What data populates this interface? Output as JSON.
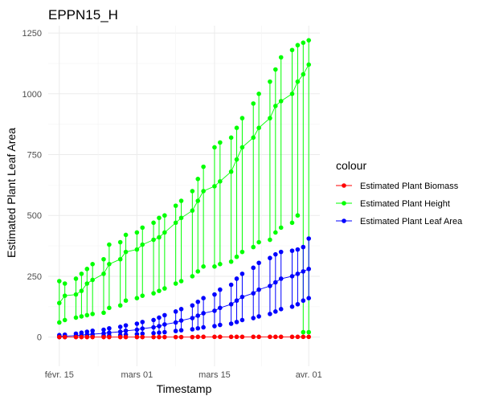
{
  "chart_data": {
    "type": "line",
    "title": "EPPN15_H",
    "xlabel": "Timestamp",
    "ylabel": "Estimated Plant Leaf Area",
    "x_ticks": [
      "févr. 15",
      "mars 01",
      "mars 15",
      "avr. 01"
    ],
    "x_tick_dates": [
      "2015-02-15",
      "2015-03-01",
      "2015-03-15",
      "2015-04-01"
    ],
    "xlim": [
      "2015-02-13",
      "2015-04-03"
    ],
    "y_ticks": [
      0,
      250,
      500,
      750,
      1000,
      1250
    ],
    "ylim": [
      -120,
      1280
    ],
    "grid": true,
    "legend": {
      "title": "colour",
      "position": "right",
      "entries": [
        "Estimated Plant Biomass",
        "Estimated Plant Height",
        "Estimated Plant Leaf Area"
      ]
    },
    "colors": {
      "Estimated Plant Biomass": "#ff0000",
      "Estimated Plant Height": "#00ff00",
      "Estimated Plant Leaf Area": "#0000ff"
    },
    "series": [
      {
        "name": "Estimated Plant Height",
        "color": "#00ff00",
        "x": [
          "2015-02-15",
          "2015-02-16",
          "2015-02-18",
          "2015-02-19",
          "2015-02-20",
          "2015-02-21",
          "2015-02-23",
          "2015-02-24",
          "2015-02-26",
          "2015-02-27",
          "2015-03-01",
          "2015-03-02",
          "2015-03-04",
          "2015-03-05",
          "2015-03-06",
          "2015-03-08",
          "2015-03-09",
          "2015-03-11",
          "2015-03-12",
          "2015-03-13",
          "2015-03-15",
          "2015-03-16",
          "2015-03-18",
          "2015-03-19",
          "2015-03-20",
          "2015-03-22",
          "2015-03-23",
          "2015-03-25",
          "2015-03-26",
          "2015-03-27",
          "2015-03-29",
          "2015-03-30",
          "2015-03-31",
          "2015-04-01"
        ],
        "y": [
          140,
          170,
          175,
          190,
          220,
          235,
          260,
          300,
          320,
          350,
          360,
          380,
          400,
          410,
          430,
          470,
          490,
          520,
          560,
          600,
          620,
          640,
          680,
          730,
          780,
          820,
          860,
          900,
          950,
          970,
          1000,
          1050,
          1080,
          1120
        ],
        "y_min": [
          60,
          70,
          80,
          85,
          90,
          95,
          100,
          120,
          130,
          150,
          160,
          170,
          180,
          190,
          200,
          220,
          230,
          250,
          270,
          290,
          290,
          300,
          310,
          330,
          350,
          370,
          390,
          400,
          430,
          450,
          470,
          500,
          20,
          20
        ],
        "y_max": [
          230,
          220,
          240,
          260,
          280,
          300,
          320,
          380,
          390,
          420,
          430,
          450,
          470,
          490,
          500,
          540,
          560,
          600,
          650,
          700,
          780,
          800,
          820,
          860,
          900,
          960,
          1000,
          1050,
          1100,
          1150,
          1180,
          1200,
          1210,
          1220
        ]
      },
      {
        "name": "Estimated Plant Leaf Area",
        "color": "#0000ff",
        "x": [
          "2015-02-15",
          "2015-02-16",
          "2015-02-18",
          "2015-02-19",
          "2015-02-20",
          "2015-02-21",
          "2015-02-23",
          "2015-02-24",
          "2015-02-26",
          "2015-02-27",
          "2015-03-01",
          "2015-03-02",
          "2015-03-04",
          "2015-03-05",
          "2015-03-06",
          "2015-03-08",
          "2015-03-09",
          "2015-03-11",
          "2015-03-12",
          "2015-03-13",
          "2015-03-15",
          "2015-03-16",
          "2015-03-18",
          "2015-03-19",
          "2015-03-20",
          "2015-03-22",
          "2015-03-23",
          "2015-03-25",
          "2015-03-26",
          "2015-03-27",
          "2015-03-29",
          "2015-03-30",
          "2015-03-31",
          "2015-04-01"
        ],
        "y": [
          3,
          4,
          6,
          8,
          10,
          12,
          15,
          18,
          22,
          26,
          30,
          35,
          40,
          45,
          52,
          60,
          68,
          78,
          88,
          98,
          108,
          120,
          135,
          150,
          165,
          180,
          195,
          210,
          225,
          240,
          250,
          260,
          270,
          280
        ],
        "y_min": [
          0,
          0,
          1,
          2,
          3,
          4,
          5,
          6,
          8,
          10,
          12,
          14,
          16,
          18,
          20,
          25,
          28,
          32,
          36,
          40,
          45,
          50,
          55,
          62,
          70,
          78,
          85,
          95,
          105,
          115,
          125,
          135,
          150,
          160
        ],
        "y_max": [
          8,
          10,
          14,
          18,
          22,
          26,
          30,
          36,
          42,
          48,
          55,
          62,
          70,
          80,
          90,
          105,
          115,
          130,
          145,
          160,
          175,
          195,
          215,
          240,
          260,
          285,
          305,
          325,
          340,
          350,
          355,
          360,
          370,
          405
        ]
      },
      {
        "name": "Estimated Plant Biomass",
        "color": "#ff0000",
        "x": [
          "2015-02-15",
          "2015-02-16",
          "2015-02-18",
          "2015-02-19",
          "2015-02-20",
          "2015-02-21",
          "2015-02-23",
          "2015-02-24",
          "2015-02-26",
          "2015-02-27",
          "2015-03-01",
          "2015-03-02",
          "2015-03-04",
          "2015-03-05",
          "2015-03-06",
          "2015-03-08",
          "2015-03-09",
          "2015-03-11",
          "2015-03-12",
          "2015-03-13",
          "2015-03-15",
          "2015-03-16",
          "2015-03-18",
          "2015-03-19",
          "2015-03-20",
          "2015-03-22",
          "2015-03-23",
          "2015-03-25",
          "2015-03-26",
          "2015-03-27",
          "2015-03-29",
          "2015-03-30",
          "2015-03-31",
          "2015-04-01"
        ],
        "y": [
          0,
          0,
          0,
          0,
          0,
          0,
          0,
          0,
          0,
          0,
          0,
          0,
          0,
          0,
          0,
          0,
          0,
          0,
          1,
          1,
          1,
          1,
          1,
          1,
          1,
          1,
          1,
          1,
          1,
          1,
          1,
          1,
          1,
          1
        ]
      }
    ]
  }
}
